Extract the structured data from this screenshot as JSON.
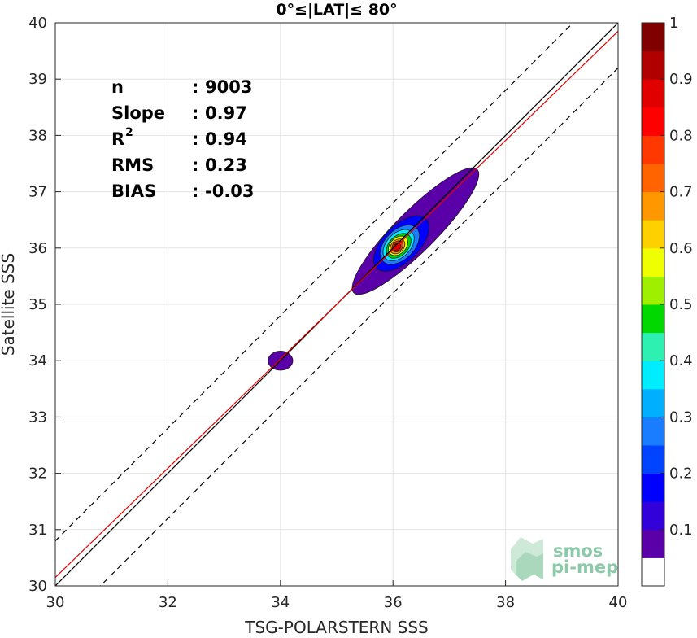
{
  "chart_data": {
    "type": "heatmap",
    "title": "0°≤|LAT|≤ 80°",
    "xlabel": "TSG-POLARSTERN SSS",
    "ylabel": "Satellite SSS",
    "xlim": [
      30,
      40
    ],
    "ylim": [
      30,
      40
    ],
    "x_ticks": [
      "30",
      "32",
      "34",
      "36",
      "38",
      "40"
    ],
    "y_ticks": [
      "30",
      "31",
      "32",
      "33",
      "34",
      "35",
      "36",
      "37",
      "38",
      "39",
      "40"
    ],
    "grid": true,
    "stats": [
      {
        "label": "n",
        "sep": ": ",
        "value": "9003"
      },
      {
        "label": "Slope",
        "sep": ": ",
        "value": "0.97"
      },
      {
        "label": "R",
        "sup": "2",
        "sep": ": ",
        "value": "0.94"
      },
      {
        "label": "RMS",
        "sep": ": ",
        "value": "0.23"
      },
      {
        "label": "BIAS",
        "sep": ": ",
        "value": "-0.03"
      }
    ],
    "reference_lines": {
      "identity": {
        "color": "#000000",
        "offset": 0
      },
      "bounds": {
        "color": "#000000",
        "dash": true,
        "offsets": [
          -0.8,
          0.8
        ]
      },
      "regression": {
        "color": "#e00000",
        "slope": 0.97,
        "bias": -0.03
      }
    },
    "density_contours": [
      {
        "level": 0.05,
        "center": [
          34.0,
          34.0
        ],
        "rx": 0.22,
        "ry": 0.17
      },
      {
        "level": 0.05,
        "center": [
          36.4,
          36.3
        ],
        "rx": 1.55,
        "ry": 0.36,
        "rotate": 45
      },
      {
        "level": 0.15,
        "center": [
          36.15,
          36.08
        ],
        "rx": 0.62,
        "ry": 0.32,
        "rotate": 45
      },
      {
        "level": 0.25,
        "center": [
          36.12,
          36.06
        ],
        "rx": 0.42,
        "ry": 0.26,
        "rotate": 45
      },
      {
        "level": 0.35,
        "center": [
          36.1,
          36.05
        ],
        "rx": 0.33,
        "ry": 0.21,
        "rotate": 45
      },
      {
        "level": 0.45,
        "center": [
          36.1,
          36.04
        ],
        "rx": 0.26,
        "ry": 0.17,
        "rotate": 45
      },
      {
        "level": 0.55,
        "center": [
          36.09,
          36.04
        ],
        "rx": 0.2,
        "ry": 0.14,
        "rotate": 45
      },
      {
        "level": 0.65,
        "center": [
          36.08,
          36.03
        ],
        "rx": 0.15,
        "ry": 0.11,
        "rotate": 45
      },
      {
        "level": 0.75,
        "center": [
          36.08,
          36.03
        ],
        "rx": 0.11,
        "ry": 0.085,
        "rotate": 45
      },
      {
        "level": 0.85,
        "center": [
          36.07,
          36.02
        ],
        "rx": 0.075,
        "ry": 0.06,
        "rotate": 45
      }
    ],
    "colorbar": {
      "ticks": [
        "0.1",
        "0.2",
        "0.3",
        "0.4",
        "0.5",
        "0.6",
        "0.7",
        "0.8",
        "0.9",
        "1"
      ],
      "colors": [
        "#ffffff",
        "#5a00a8",
        "#3200d8",
        "#0000ff",
        "#0044ff",
        "#1a7cff",
        "#00b0ff",
        "#00ecff",
        "#2ef0b0",
        "#00d800",
        "#9ef000",
        "#f0ff00",
        "#ffd000",
        "#ff9800",
        "#ff6400",
        "#ff3800",
        "#ff0000",
        "#e00000",
        "#b00000",
        "#800000"
      ]
    },
    "logo": {
      "line1": "smos",
      "line2": "pi-mep"
    }
  }
}
